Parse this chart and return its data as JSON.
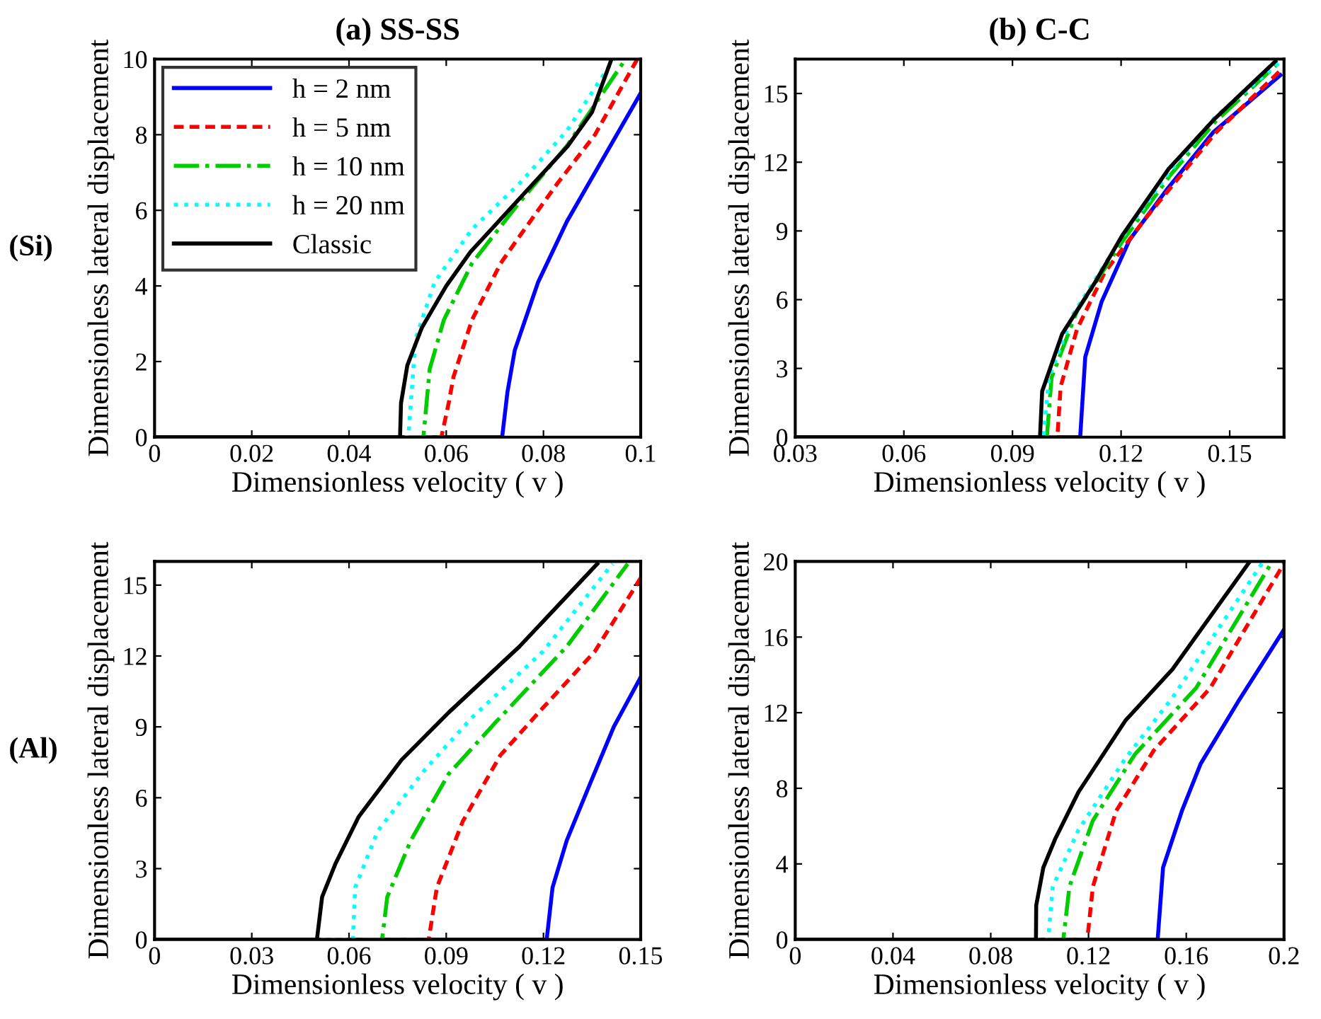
{
  "chart_data": [
    {
      "type": "line",
      "title": "(a) SS-SS",
      "xlabel": "Dimensionless velocity ( v )",
      "ylabel": "Dimensionless lateral displacement",
      "annotations": [
        "(Si)"
      ],
      "xlim": [
        0,
        0.1
      ],
      "ylim": [
        0,
        10
      ],
      "xticks": [
        0,
        0.02,
        0.04,
        0.06,
        0.08,
        0.1
      ],
      "yticks": [
        0,
        2,
        4,
        6,
        8,
        10
      ],
      "legend": "top left",
      "grid": false,
      "series": [
        {
          "name": "h = 2 nm",
          "color": "#0000ff",
          "line_style": "solid",
          "x": [
            0,
            0.0715,
            0.0726,
            0.0741,
            0.0789,
            0.0848,
            0.0906,
            0.1
          ],
          "values": [
            0,
            0,
            1.2,
            2.3,
            4.1,
            5.7,
            7.0,
            9.1
          ]
        },
        {
          "name": "h = 5 nm",
          "color": "#ff0000",
          "line_style": "dashed",
          "x": [
            0,
            0.059,
            0.0605,
            0.0615,
            0.0653,
            0.0712,
            0.075,
            0.0828,
            0.0906,
            0.0993
          ],
          "values": [
            0,
            0,
            0.9,
            1.6,
            3.1,
            4.6,
            5.3,
            6.7,
            8.0,
            10
          ]
        },
        {
          "name": "h = 10 nm",
          "color": "#00cc00",
          "line_style": "dashdot",
          "x": [
            0,
            0.0553,
            0.0566,
            0.0595,
            0.0653,
            0.075,
            0.0848,
            0.0969
          ],
          "values": [
            0,
            0,
            1.8,
            3.1,
            4.6,
            6.2,
            7.7,
            10
          ]
        },
        {
          "name": "h = 20 nm",
          "color": "#00ffff",
          "line_style": "dotted",
          "x": [
            0,
            0.0522,
            0.0537,
            0.0576,
            0.0653,
            0.075,
            0.0848,
            0.0945
          ],
          "values": [
            0,
            0,
            2.6,
            4.1,
            5.5,
            6.7,
            8.1,
            10
          ]
        },
        {
          "name": "Classic",
          "color": "#000000",
          "line_style": "solid",
          "x": [
            0,
            0.0505,
            0.0507,
            0.052,
            0.055,
            0.06,
            0.065,
            0.07,
            0.075,
            0.08,
            0.085,
            0.09,
            0.094
          ],
          "values": [
            0,
            0,
            0.9,
            1.9,
            2.9,
            4.0,
            4.9,
            5.6,
            6.3,
            7.0,
            7.7,
            8.6,
            10
          ]
        }
      ]
    },
    {
      "type": "line",
      "title": "(b) C-C",
      "xlabel": "Dimensionless velocity ( v )",
      "ylabel": "Dimensionless lateral displacement",
      "xlim": [
        0.03,
        0.165
      ],
      "ylim": [
        0,
        16.5
      ],
      "xticks": [
        0.03,
        0.06,
        0.09,
        0.12,
        0.15
      ],
      "yticks": [
        0,
        3,
        6,
        9,
        12,
        15
      ],
      "grid": false,
      "series": [
        {
          "color": "#0000ff",
          "line_style": "solid",
          "x": [
            0.03,
            0.1087,
            0.1101,
            0.1146,
            0.1223,
            0.1326,
            0.1454,
            0.164
          ],
          "values": [
            0,
            0,
            3.5,
            5.9,
            8.6,
            10.8,
            13.3,
            15.8
          ]
        },
        {
          "color": "#ff0000",
          "line_style": "dashed",
          "x": [
            0.03,
            0.1024,
            0.1033,
            0.1078,
            0.1155,
            0.127,
            0.1462,
            0.164
          ],
          "values": [
            0,
            0,
            2.2,
            4.7,
            7.2,
            9.6,
            13.3,
            16.0
          ]
        },
        {
          "color": "#00cc00",
          "line_style": "dashdot",
          "x": [
            0.03,
            0.0995,
            0.1008,
            0.1078,
            0.1206,
            0.1334,
            0.1462,
            0.164
          ],
          "values": [
            0,
            0,
            2.6,
            5.5,
            8.6,
            11.4,
            13.8,
            16.4
          ]
        },
        {
          "color": "#00ffff",
          "line_style": "dotted",
          "x": [
            0.03,
            0.0985,
            0.1001,
            0.1065,
            0.1206,
            0.1334,
            0.1462,
            0.164
          ],
          "values": [
            0,
            0,
            2.6,
            5.3,
            8.8,
            11.6,
            14.0,
            16.4
          ]
        },
        {
          "color": "#000000",
          "line_style": "solid",
          "x": [
            0.03,
            0.0976,
            0.0982,
            0.1037,
            0.1126,
            0.1203,
            0.1331,
            0.1459,
            0.1626
          ],
          "values": [
            0,
            0,
            2.0,
            4.5,
            6.7,
            8.8,
            11.7,
            13.9,
            16.4
          ]
        }
      ]
    },
    {
      "type": "line",
      "xlabel": "Dimensionless velocity ( v )",
      "ylabel": "Dimensionless lateral displacement",
      "annotations": [
        "(Al)"
      ],
      "xlim": [
        0,
        0.15
      ],
      "ylim": [
        0,
        16
      ],
      "xticks": [
        0,
        0.03,
        0.06,
        0.09,
        0.12,
        0.15
      ],
      "yticks": [
        0,
        3,
        6,
        9,
        12,
        15
      ],
      "grid": false,
      "series": [
        {
          "color": "#0000ff",
          "line_style": "solid",
          "x": [
            0,
            0.121,
            0.1228,
            0.1272,
            0.1344,
            0.1417,
            0.15
          ],
          "values": [
            0,
            0,
            2.2,
            4.2,
            6.6,
            9.0,
            11.1
          ]
        },
        {
          "color": "#ff0000",
          "line_style": "dashed",
          "x": [
            0,
            0.0846,
            0.0871,
            0.0951,
            0.1067,
            0.1198,
            0.1359,
            0.15
          ],
          "values": [
            0,
            0,
            2.2,
            5.0,
            7.8,
            9.8,
            12.2,
            15.3
          ]
        },
        {
          "color": "#00cc00",
          "line_style": "dashdot",
          "x": [
            0,
            0.0702,
            0.0718,
            0.0791,
            0.0907,
            0.1053,
            0.1272,
            0.146
          ],
          "values": [
            0,
            0,
            1.8,
            4.2,
            7.0,
            9.2,
            12.4,
            15.9
          ]
        },
        {
          "color": "#00ffff",
          "line_style": "dotted",
          "x": [
            0,
            0.0612,
            0.0619,
            0.0689,
            0.0835,
            0.098,
            0.1199,
            0.1413
          ],
          "values": [
            0,
            0,
            2.2,
            4.6,
            7.2,
            9.4,
            12.2,
            15.9
          ]
        },
        {
          "color": "#000000",
          "line_style": "solid",
          "x": [
            0,
            0.0501,
            0.0517,
            0.0558,
            0.063,
            0.0762,
            0.0907,
            0.1126,
            0.1366
          ],
          "values": [
            0,
            0,
            1.8,
            3.2,
            5.2,
            7.6,
            9.6,
            12.4,
            15.9
          ]
        }
      ]
    },
    {
      "type": "line",
      "xlabel": "Dimensionless velocity ( v )",
      "ylabel": "Dimensionless lateral displacement",
      "xlim": [
        0,
        0.2
      ],
      "ylim": [
        0,
        20
      ],
      "xticks": [
        0,
        0.04,
        0.08,
        0.12,
        0.16,
        0.2
      ],
      "yticks": [
        0,
        4,
        8,
        12,
        16,
        20
      ],
      "grid": false,
      "series": [
        {
          "color": "#0000ff",
          "line_style": "solid",
          "x": [
            0,
            0.1483,
            0.1505,
            0.1582,
            0.1659,
            0.1813,
            0.2
          ],
          "values": [
            0,
            0,
            3.8,
            6.8,
            9.3,
            12.6,
            16.4
          ]
        },
        {
          "color": "#ff0000",
          "line_style": "dashed",
          "x": [
            0,
            0.1195,
            0.1218,
            0.1313,
            0.1467,
            0.1698,
            0.2
          ],
          "values": [
            0,
            0,
            2.8,
            6.8,
            10.0,
            13.3,
            19.9
          ]
        },
        {
          "color": "#00cc00",
          "line_style": "dashdot",
          "x": [
            0,
            0.1097,
            0.1122,
            0.1218,
            0.139,
            0.164,
            0.1952
          ],
          "values": [
            0,
            0,
            2.8,
            6.3,
            9.8,
            13.3,
            20
          ]
        },
        {
          "color": "#00ffff",
          "line_style": "dotted",
          "x": [
            0,
            0.1035,
            0.1054,
            0.1159,
            0.1352,
            0.1544,
            0.1915
          ],
          "values": [
            0,
            0,
            2.8,
            5.8,
            9.6,
            12.8,
            20
          ]
        },
        {
          "color": "#000000",
          "line_style": "solid",
          "x": [
            0,
            0.0985,
            0.0986,
            0.1015,
            0.1063,
            0.1159,
            0.1352,
            0.1544,
            0.186
          ],
          "values": [
            0,
            0,
            1.8,
            3.8,
            5.3,
            7.8,
            11.6,
            14.3,
            20
          ]
        }
      ]
    }
  ]
}
